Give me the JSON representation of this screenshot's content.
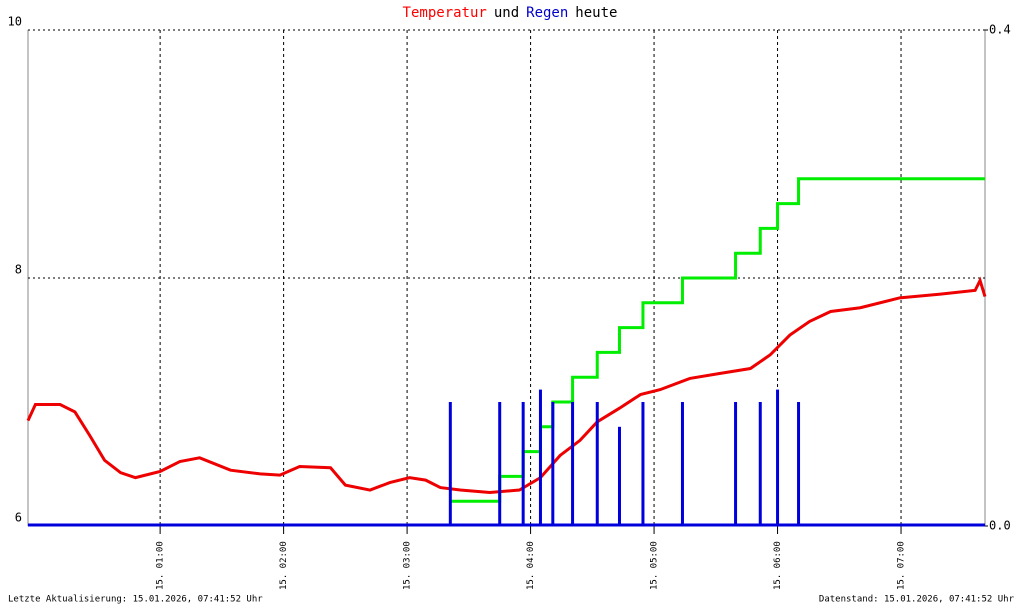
{
  "chart_data": {
    "type": "line",
    "title": [
      {
        "text": "Temperatur",
        "color": "#ff0000"
      },
      {
        "text": "und",
        "color": "#000000"
      },
      {
        "text": "Regen",
        "color": "#0000cc"
      },
      {
        "text": "heute",
        "color": "#000000"
      }
    ],
    "xlim": [
      -0.07,
      7.68
    ],
    "xticks": [
      {
        "value": 1,
        "label": "15. 01:00"
      },
      {
        "value": 2,
        "label": "15. 02:00"
      },
      {
        "value": 3,
        "label": "15. 03:00"
      },
      {
        "value": 4,
        "label": "15. 04:00"
      },
      {
        "value": 5,
        "label": "15. 05:00"
      },
      {
        "value": 6,
        "label": "15. 06:00"
      },
      {
        "value": 7,
        "label": "15. 07:00"
      }
    ],
    "ylim": [
      6,
      10
    ],
    "yticks": [
      6,
      8,
      10
    ],
    "y2lim": [
      0,
      0.4
    ],
    "y2ticks": [
      {
        "value": 0,
        "label": "0.0"
      },
      0.4
    ],
    "grid": true,
    "series": [
      {
        "kind": "line",
        "color": "#ee0000",
        "x": [
          -0.07,
          -0.01,
          0.19,
          0.31,
          0.43,
          0.55,
          0.68,
          0.8,
          1.0,
          1.16,
          1.32,
          1.57,
          1.81,
          1.97,
          2.13,
          2.38,
          2.5,
          2.7,
          2.86,
          3.02,
          3.15,
          3.27,
          3.43,
          3.67,
          3.91,
          4.08,
          4.24,
          4.4,
          4.54,
          4.72,
          4.89,
          5.05,
          5.29,
          5.53,
          5.78,
          5.94,
          6.1,
          6.26,
          6.43,
          6.67,
          6.99,
          7.32,
          7.6,
          7.64,
          7.68
        ],
        "values": [
          6.85,
          6.98,
          6.98,
          6.92,
          6.73,
          6.53,
          6.43,
          6.39,
          6.44,
          6.52,
          6.55,
          6.45,
          6.42,
          6.41,
          6.48,
          6.47,
          6.33,
          6.29,
          6.35,
          6.39,
          6.37,
          6.31,
          6.29,
          6.27,
          6.29,
          6.39,
          6.57,
          6.69,
          6.84,
          6.95,
          7.06,
          7.1,
          7.19,
          7.23,
          7.27,
          7.38,
          7.54,
          7.65,
          7.73,
          7.76,
          7.84,
          7.87,
          7.9,
          7.98,
          7.85
        ]
      },
      {
        "kind": "line",
        "axis": "y2",
        "color": "#00ee00",
        "x": [
          3.35,
          3.75,
          3.75,
          3.94,
          3.94,
          4.08,
          4.08,
          4.18,
          4.18,
          4.34,
          4.34,
          4.54,
          4.54,
          4.72,
          4.72,
          4.91,
          4.91,
          5.23,
          5.23,
          5.66,
          5.66,
          5.86,
          5.86,
          6.0,
          6.0,
          6.17,
          6.17,
          7.68
        ],
        "values": [
          0.02,
          0.02,
          0.04,
          0.04,
          0.06,
          0.06,
          0.08,
          0.08,
          0.1,
          0.1,
          0.12,
          0.12,
          0.14,
          0.14,
          0.16,
          0.16,
          0.18,
          0.18,
          0.2,
          0.2,
          0.22,
          0.22,
          0.24,
          0.24,
          0.26,
          0.26,
          0.28,
          0.28
        ]
      },
      {
        "kind": "bar",
        "axis": "y2",
        "color": "#0000dd",
        "x": [
          3.35,
          3.75,
          3.94,
          4.08,
          4.18,
          4.34,
          4.54,
          4.72,
          4.91,
          5.23,
          5.66,
          5.86,
          6.0,
          6.17
        ],
        "values": [
          0.1,
          0.1,
          0.1,
          0.11,
          0.1,
          0.1,
          0.1,
          0.08,
          0.1,
          0.1,
          0.1,
          0.1,
          0.11,
          0.1
        ]
      }
    ],
    "footer_left": "Letzte Aktualisierung: 15.01.2026, 07:41:52 Uhr",
    "footer_right": "Datenstand: 15.01.2026, 07:41:52 Uhr"
  }
}
